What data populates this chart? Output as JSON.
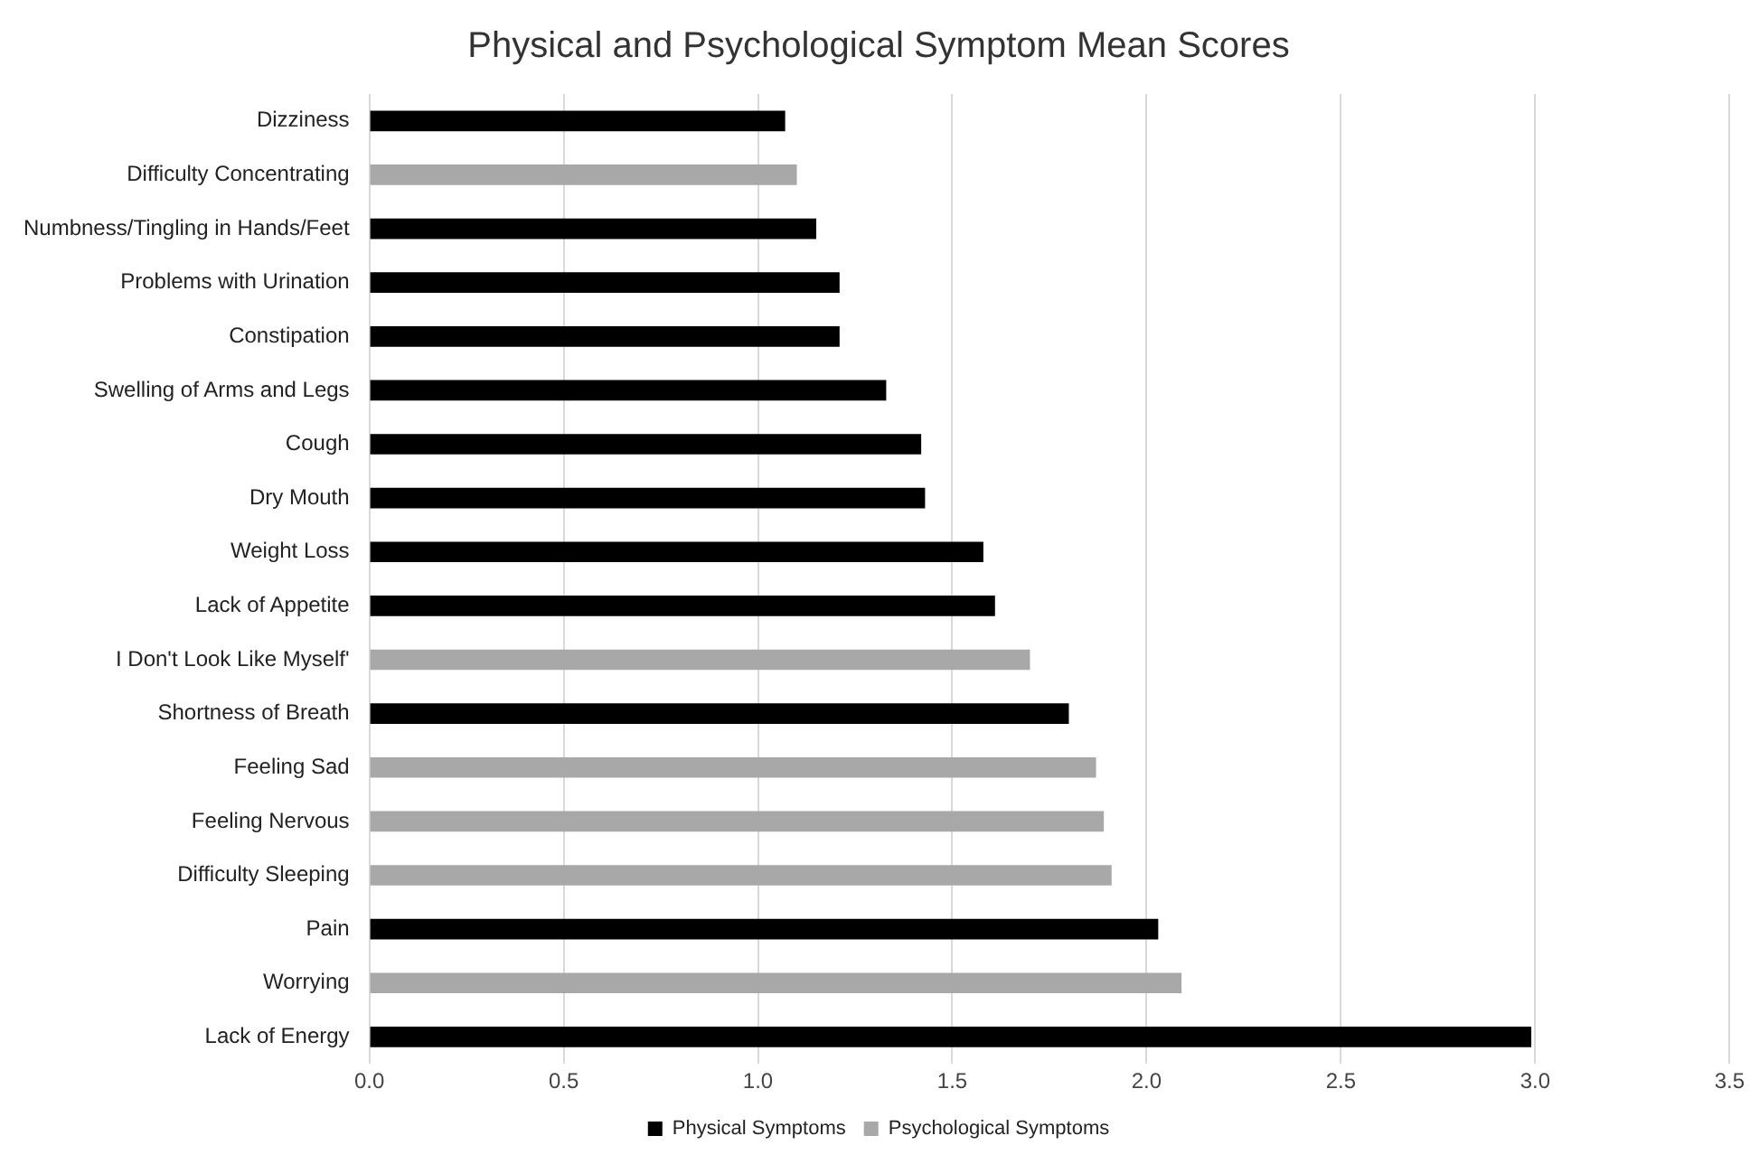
{
  "chart_data": {
    "type": "bar",
    "orientation": "horizontal",
    "title": "Physical and Psychological Symptom Mean Scores",
    "categories": [
      "Dizziness",
      "Difficulty Concentrating",
      "Numbness/Tingling in Hands/Feet",
      "Problems with Urination",
      "Constipation",
      "Swelling of Arms and Legs",
      "Cough",
      "Dry Mouth",
      "Weight Loss",
      "Lack of Appetite",
      "I Don't Look Like Myself'",
      "Shortness of Breath",
      "Feeling Sad",
      "Feeling Nervous",
      "Difficulty Sleeping",
      "Pain",
      "Worrying",
      "Lack of Energy"
    ],
    "series": [
      {
        "name": "Physical Symptoms",
        "color": "#000000",
        "values": [
          1.07,
          null,
          1.15,
          1.21,
          1.21,
          1.33,
          1.42,
          1.43,
          1.58,
          1.61,
          null,
          1.8,
          null,
          null,
          null,
          2.03,
          null,
          2.99
        ]
      },
      {
        "name": "Psychological Symptoms",
        "color": "#a8a8a8",
        "values": [
          null,
          1.1,
          null,
          null,
          null,
          null,
          null,
          null,
          null,
          null,
          1.7,
          null,
          1.87,
          1.89,
          1.91,
          null,
          2.09,
          null
        ]
      }
    ],
    "xlim": [
      0,
      3.5
    ],
    "xticks": [
      {
        "value": 0,
        "label": "0.0"
      },
      0.5,
      {
        "value": 1,
        "label": "1.0"
      },
      1.5,
      {
        "value": 2,
        "label": "2.0"
      },
      2.5,
      {
        "value": 3,
        "label": "3.0"
      },
      3.5
    ],
    "grid": "x",
    "legend": "bottom"
  }
}
